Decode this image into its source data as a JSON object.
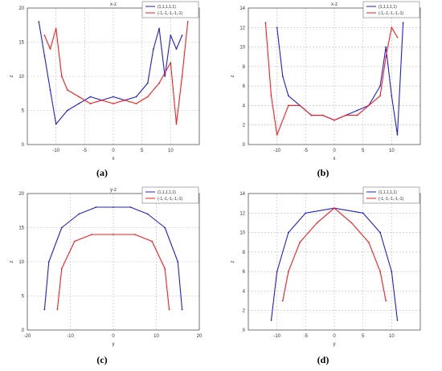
{
  "legend_labels": [
    "(1,1,1,1,1)",
    "(-1,-1,-1,-1,-1)"
  ],
  "colors": {
    "series1": "#1f1fd6",
    "series2": "#ff1a1a",
    "axis": "#555555",
    "grid": "#bdbdbd"
  },
  "captions": [
    "(a)",
    "(b)",
    "(c)",
    "(d)"
  ],
  "chart_data": [
    {
      "type": "line",
      "title": "x-z",
      "xlabel": "x",
      "ylabel": "z",
      "xlim": [
        -15,
        15
      ],
      "ylim": [
        0,
        20
      ],
      "xticks": [
        -10,
        -5,
        0,
        5,
        10
      ],
      "yticks": [
        0,
        5,
        10,
        15,
        20
      ],
      "grid": true,
      "legend_position": "top-right",
      "series": [
        {
          "name": "(1,1,1,1,1)",
          "color": "#1f1fd6",
          "x": [
            -13,
            -12,
            -11,
            -10,
            -8,
            -6,
            -4,
            -2,
            0,
            2,
            4,
            6,
            7,
            8,
            9,
            10,
            11,
            12
          ],
          "y": [
            18,
            13,
            8,
            3,
            5,
            6,
            7,
            6.5,
            7,
            6.5,
            7,
            9,
            14,
            17,
            10,
            16,
            14,
            16
          ]
        },
        {
          "name": "(-1,-1,-1,-1,-1)",
          "color": "#ff1a1a",
          "x": [
            -12,
            -11,
            -10,
            -9,
            -8,
            -6,
            -4,
            -2,
            0,
            2,
            4,
            6,
            8,
            10,
            11,
            12,
            13
          ],
          "y": [
            16,
            14,
            17,
            10,
            8,
            7,
            6,
            6.5,
            6,
            6.5,
            6,
            7,
            9,
            12,
            3,
            10,
            18
          ]
        }
      ]
    },
    {
      "type": "line",
      "title": "x-z",
      "xlabel": "x",
      "ylabel": "z",
      "xlim": [
        -15,
        15
      ],
      "ylim": [
        0,
        14
      ],
      "xticks": [
        -10,
        -5,
        0,
        5,
        10
      ],
      "yticks": [
        0,
        2,
        4,
        6,
        8,
        10,
        12,
        14
      ],
      "grid": true,
      "legend_position": "top-right",
      "series": [
        {
          "name": "(1,1,1,1,1)",
          "color": "#1f1fd6",
          "x": [
            -10,
            -9,
            -8,
            -6,
            -4,
            -2,
            0,
            2,
            4,
            6,
            8,
            9,
            10,
            11,
            12
          ],
          "y": [
            12,
            7,
            5,
            4,
            3,
            3,
            2.5,
            3,
            3.5,
            4,
            6,
            10,
            5,
            1,
            12.5
          ]
        },
        {
          "name": "(-1,-1,-1,-1,-1)",
          "color": "#ff1a1a",
          "x": [
            -12,
            -11,
            -10,
            -8,
            -6,
            -4,
            -2,
            0,
            2,
            4,
            6,
            8,
            9,
            10,
            11
          ],
          "y": [
            12.5,
            5,
            1,
            4,
            4,
            3,
            3,
            2.5,
            3,
            3,
            4,
            5,
            9,
            12,
            11
          ]
        }
      ]
    },
    {
      "type": "line",
      "title": "y-z",
      "xlabel": "y",
      "ylabel": "z",
      "xlim": [
        -20,
        20
      ],
      "ylim": [
        0,
        20
      ],
      "xticks": [
        -20,
        -10,
        0,
        10,
        20
      ],
      "yticks": [
        0,
        5,
        10,
        15,
        20
      ],
      "grid": true,
      "legend_position": "top-right",
      "series": [
        {
          "name": "(1,1,1,1,1)",
          "color": "#1f1fd6",
          "x": [
            -16,
            -15,
            -12,
            -8,
            -4,
            0,
            4,
            8,
            12,
            15,
            16
          ],
          "y": [
            3,
            10,
            15,
            17,
            18,
            18,
            18,
            17,
            15,
            10,
            3
          ]
        },
        {
          "name": "(-1,-1,-1,-1,-1)",
          "color": "#ff1a1a",
          "x": [
            -13,
            -12,
            -9,
            -5,
            0,
            5,
            9,
            12,
            13
          ],
          "y": [
            3,
            9,
            13,
            14,
            14,
            14,
            13,
            9,
            3
          ]
        }
      ]
    },
    {
      "type": "line",
      "title": "",
      "xlabel": "y",
      "ylabel": "z",
      "xlim": [
        -15,
        15
      ],
      "ylim": [
        0,
        14
      ],
      "xticks": [
        -10,
        -5,
        0,
        5,
        10
      ],
      "yticks": [
        0,
        2,
        4,
        6,
        8,
        10,
        12,
        14
      ],
      "grid": true,
      "legend_position": "top-right",
      "series": [
        {
          "name": "(1,1,1,1,1)",
          "color": "#1f1fd6",
          "x": [
            -11,
            -10,
            -8,
            -5,
            0,
            5,
            8,
            10,
            11
          ],
          "y": [
            1,
            6,
            10,
            12,
            12.5,
            12,
            10,
            6,
            1
          ]
        },
        {
          "name": "(-1,-1,-1,-1,-1)",
          "color": "#ff1a1a",
          "x": [
            -9,
            -8,
            -6,
            -3,
            0,
            3,
            6,
            8,
            9
          ],
          "y": [
            3,
            6,
            9,
            11,
            12.5,
            11,
            9,
            6,
            3
          ]
        }
      ]
    }
  ]
}
